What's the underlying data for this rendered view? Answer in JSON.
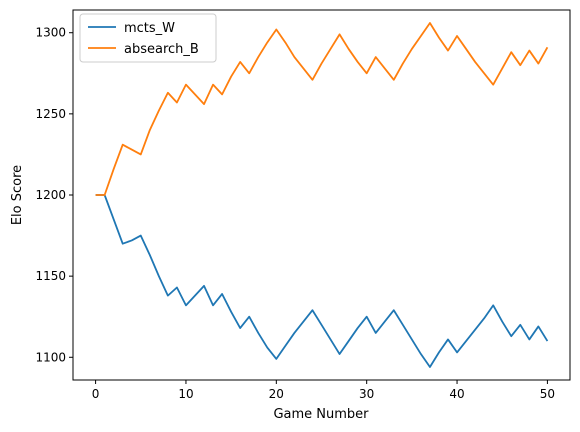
{
  "chart_data": {
    "type": "line",
    "title": "",
    "xlabel": "Game Number",
    "ylabel": "Elo Score",
    "xlim": [
      -2.5,
      52.5
    ],
    "ylim": [
      1086,
      1314
    ],
    "xticks": [
      0,
      10,
      20,
      30,
      40,
      50
    ],
    "yticks": [
      1100,
      1150,
      1200,
      1250,
      1300
    ],
    "grid": false,
    "legend_position": "top-left",
    "series": [
      {
        "name": "mcts_W",
        "color": "#1f77b4",
        "x": [
          0,
          1,
          2,
          3,
          4,
          5,
          6,
          7,
          8,
          9,
          10,
          11,
          12,
          13,
          14,
          15,
          16,
          17,
          18,
          19,
          20,
          21,
          22,
          23,
          24,
          25,
          26,
          27,
          28,
          29,
          30,
          31,
          32,
          33,
          34,
          35,
          36,
          37,
          38,
          39,
          40,
          41,
          42,
          43,
          44,
          45,
          46,
          47,
          48,
          49,
          50
        ],
        "y": [
          1200,
          1200,
          1185,
          1170,
          1172,
          1175,
          1163,
          1150,
          1138,
          1143,
          1132,
          1138,
          1144,
          1132,
          1139,
          1128,
          1118,
          1125,
          1115,
          1106,
          1099,
          1107,
          1115,
          1122,
          1129,
          1120,
          1111,
          1102,
          1110,
          1118,
          1125,
          1115,
          1122,
          1129,
          1120,
          1111,
          1102,
          1094,
          1103,
          1111,
          1103,
          1110,
          1117,
          1124,
          1132,
          1122,
          1113,
          1120,
          1111,
          1119,
          1110
        ]
      },
      {
        "name": "absearch_B",
        "color": "#ff7f0e",
        "x": [
          0,
          1,
          2,
          3,
          4,
          5,
          6,
          7,
          8,
          9,
          10,
          11,
          12,
          13,
          14,
          15,
          16,
          17,
          18,
          19,
          20,
          21,
          22,
          23,
          24,
          25,
          26,
          27,
          28,
          29,
          30,
          31,
          32,
          33,
          34,
          35,
          36,
          37,
          38,
          39,
          40,
          41,
          42,
          43,
          44,
          45,
          46,
          47,
          48,
          49,
          50
        ],
        "y": [
          1200,
          1200,
          1216,
          1231,
          1228,
          1225,
          1240,
          1252,
          1263,
          1257,
          1268,
          1262,
          1256,
          1268,
          1262,
          1273,
          1282,
          1275,
          1285,
          1294,
          1302,
          1294,
          1285,
          1278,
          1271,
          1281,
          1290,
          1299,
          1290,
          1282,
          1275,
          1285,
          1278,
          1271,
          1281,
          1290,
          1298,
          1306,
          1297,
          1289,
          1298,
          1290,
          1282,
          1275,
          1268,
          1278,
          1288,
          1280,
          1289,
          1281,
          1291
        ]
      }
    ]
  }
}
